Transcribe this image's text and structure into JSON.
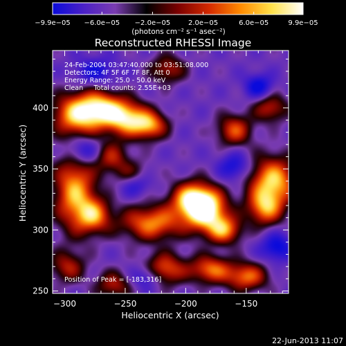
{
  "chart_data": {
    "type": "heatmap",
    "title": "Reconstructed RHESSI Image",
    "xlabel": "Heliocentric X (arcsec)",
    "ylabel": "Heliocentric Y (arcsec)",
    "xlim": [
      -310,
      -115
    ],
    "ylim": [
      248,
      447
    ],
    "x_ticks": [
      {
        "value": -300,
        "label": "−300"
      },
      {
        "value": -250,
        "label": "−250"
      },
      {
        "value": -200,
        "label": "−200"
      },
      {
        "value": -150,
        "label": "−150"
      }
    ],
    "y_ticks": [
      {
        "value": 250,
        "label": "250"
      },
      {
        "value": 300,
        "label": "300"
      },
      {
        "value": 350,
        "label": "350"
      },
      {
        "value": 400,
        "label": "400"
      }
    ],
    "colorbar": {
      "range": [
        -9.9e-05,
        9.9e-05
      ],
      "tick_values": [
        -9.9e-05,
        -6e-05,
        -2e-05,
        2e-05,
        6e-05,
        9.9e-05
      ],
      "tick_labels": [
        "−9.9e−05",
        "−6.0e−05",
        "−2.0e−05",
        "2.0e−05",
        "6.0e−05",
        "9.9e−05"
      ],
      "unit_label": "(photons cm⁻² s⁻¹ asec⁻²)",
      "colors": [
        "#0b0bd9",
        "#4b21c6",
        "#7a3cb0",
        "#000000",
        "#7a0000",
        "#d42a00",
        "#ff8a00",
        "#ffe14a",
        "#ffffff"
      ]
    },
    "annotations": [
      "24-Feb-2004 03:47:40.000 to 03:51:08.000",
      "Detectors: 4F 5F 6F 7F 8F, Att 0",
      "Energy Range: 25.0 - 50.0 keV",
      "Clean     Total counts: 2.55E+03"
    ],
    "peak_label": "Position of Peak = [-183,316]",
    "peak": {
      "x": -183,
      "y": 316
    },
    "background_level": -0.35,
    "sources": [
      {
        "x": -290,
        "y": 395,
        "sx": 14,
        "sy": 12,
        "a": 1.3
      },
      {
        "x": -270,
        "y": 400,
        "sx": 12,
        "sy": 10,
        "a": 1.1
      },
      {
        "x": -250,
        "y": 392,
        "sx": 12,
        "sy": 10,
        "a": 1.3
      },
      {
        "x": -230,
        "y": 386,
        "sx": 10,
        "sy": 8,
        "a": 1.1
      },
      {
        "x": -292,
        "y": 332,
        "sx": 12,
        "sy": 22,
        "a": 1.2
      },
      {
        "x": -276,
        "y": 312,
        "sx": 10,
        "sy": 10,
        "a": 1.0
      },
      {
        "x": -228,
        "y": 306,
        "sx": 18,
        "sy": 10,
        "a": 1.1
      },
      {
        "x": -195,
        "y": 325,
        "sx": 12,
        "sy": 10,
        "a": 1.3
      },
      {
        "x": -183,
        "y": 316,
        "sx": 12,
        "sy": 12,
        "a": 1.45
      },
      {
        "x": -168,
        "y": 300,
        "sx": 10,
        "sy": 8,
        "a": 1.0
      },
      {
        "x": -128,
        "y": 340,
        "sx": 14,
        "sy": 14,
        "a": 1.3
      },
      {
        "x": -135,
        "y": 318,
        "sx": 10,
        "sy": 10,
        "a": 1.0
      },
      {
        "x": -218,
        "y": 268,
        "sx": 12,
        "sy": 9,
        "a": 1.0
      },
      {
        "x": -180,
        "y": 268,
        "sx": 12,
        "sy": 8,
        "a": 1.0
      },
      {
        "x": -150,
        "y": 262,
        "sx": 12,
        "sy": 8,
        "a": 1.0
      },
      {
        "x": -160,
        "y": 382,
        "sx": 10,
        "sy": 9,
        "a": 0.9
      },
      {
        "x": -215,
        "y": 432,
        "sx": 10,
        "sy": 8,
        "a": 0.7
      },
      {
        "x": -262,
        "y": 360,
        "sx": 10,
        "sy": 9,
        "a": 0.7
      },
      {
        "x": -130,
        "y": 400,
        "sx": 10,
        "sy": 8,
        "a": 0.75
      },
      {
        "x": -245,
        "y": 345,
        "sx": 10,
        "sy": 8,
        "a": 0.55
      },
      {
        "x": -298,
        "y": 270,
        "sx": 10,
        "sy": 9,
        "a": 0.7
      },
      {
        "x": -260,
        "y": 255,
        "sx": 10,
        "sy": 8,
        "a": 0.7
      },
      {
        "x": -285,
        "y": 365,
        "sx": 10,
        "sy": 8,
        "a": -0.7
      },
      {
        "x": -275,
        "y": 430,
        "sx": 12,
        "sy": 8,
        "a": -0.55
      },
      {
        "x": -242,
        "y": 338,
        "sx": 9,
        "sy": 7,
        "a": -0.6
      },
      {
        "x": -232,
        "y": 262,
        "sx": 9,
        "sy": 7,
        "a": -0.6
      },
      {
        "x": -140,
        "y": 418,
        "sx": 8,
        "sy": 7,
        "a": -0.7
      },
      {
        "x": -160,
        "y": 352,
        "sx": 9,
        "sy": 8,
        "a": -0.6
      },
      {
        "x": -125,
        "y": 286,
        "sx": 9,
        "sy": 8,
        "a": -0.7
      }
    ]
  },
  "footer": {
    "date": "22-Jun-2013 11:07"
  }
}
